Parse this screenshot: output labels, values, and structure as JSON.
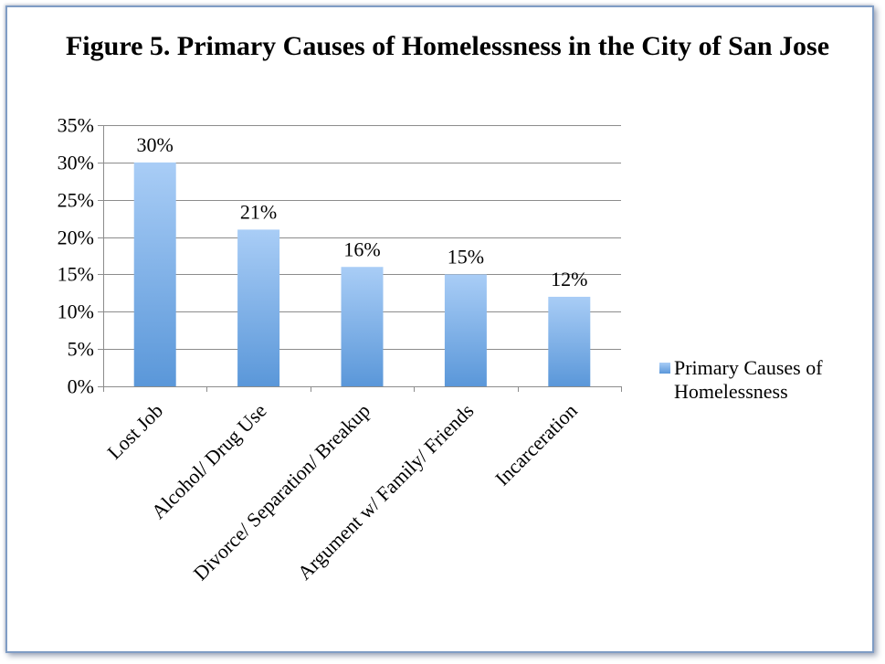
{
  "chart_data": {
    "type": "bar",
    "title": "Figure 5. Primary Causes of Homelessness in the City of San Jose",
    "categories": [
      "Lost Job",
      "Alcohol/ Drug Use",
      "Divorce/ Separation/ Breakup",
      "Argument w/ Family/ Friends",
      "Incarceration"
    ],
    "series": [
      {
        "name": "Primary Causes of Homelessness",
        "values": [
          30,
          21,
          16,
          15,
          12
        ]
      }
    ],
    "data_labels": [
      "30%",
      "21%",
      "16%",
      "15%",
      "12%"
    ],
    "y_ticks": [
      "0%",
      "5%",
      "10%",
      "15%",
      "20%",
      "25%",
      "30%",
      "35%"
    ],
    "ylim": [
      0,
      35
    ],
    "y_unit": "%",
    "grid": true,
    "legend_position": "right",
    "colors": {
      "bar_top": "#a9cdf6",
      "bar_bottom": "#5a97d9",
      "grid": "#8c8c8c",
      "frame_border": "#7f9cc4"
    }
  }
}
